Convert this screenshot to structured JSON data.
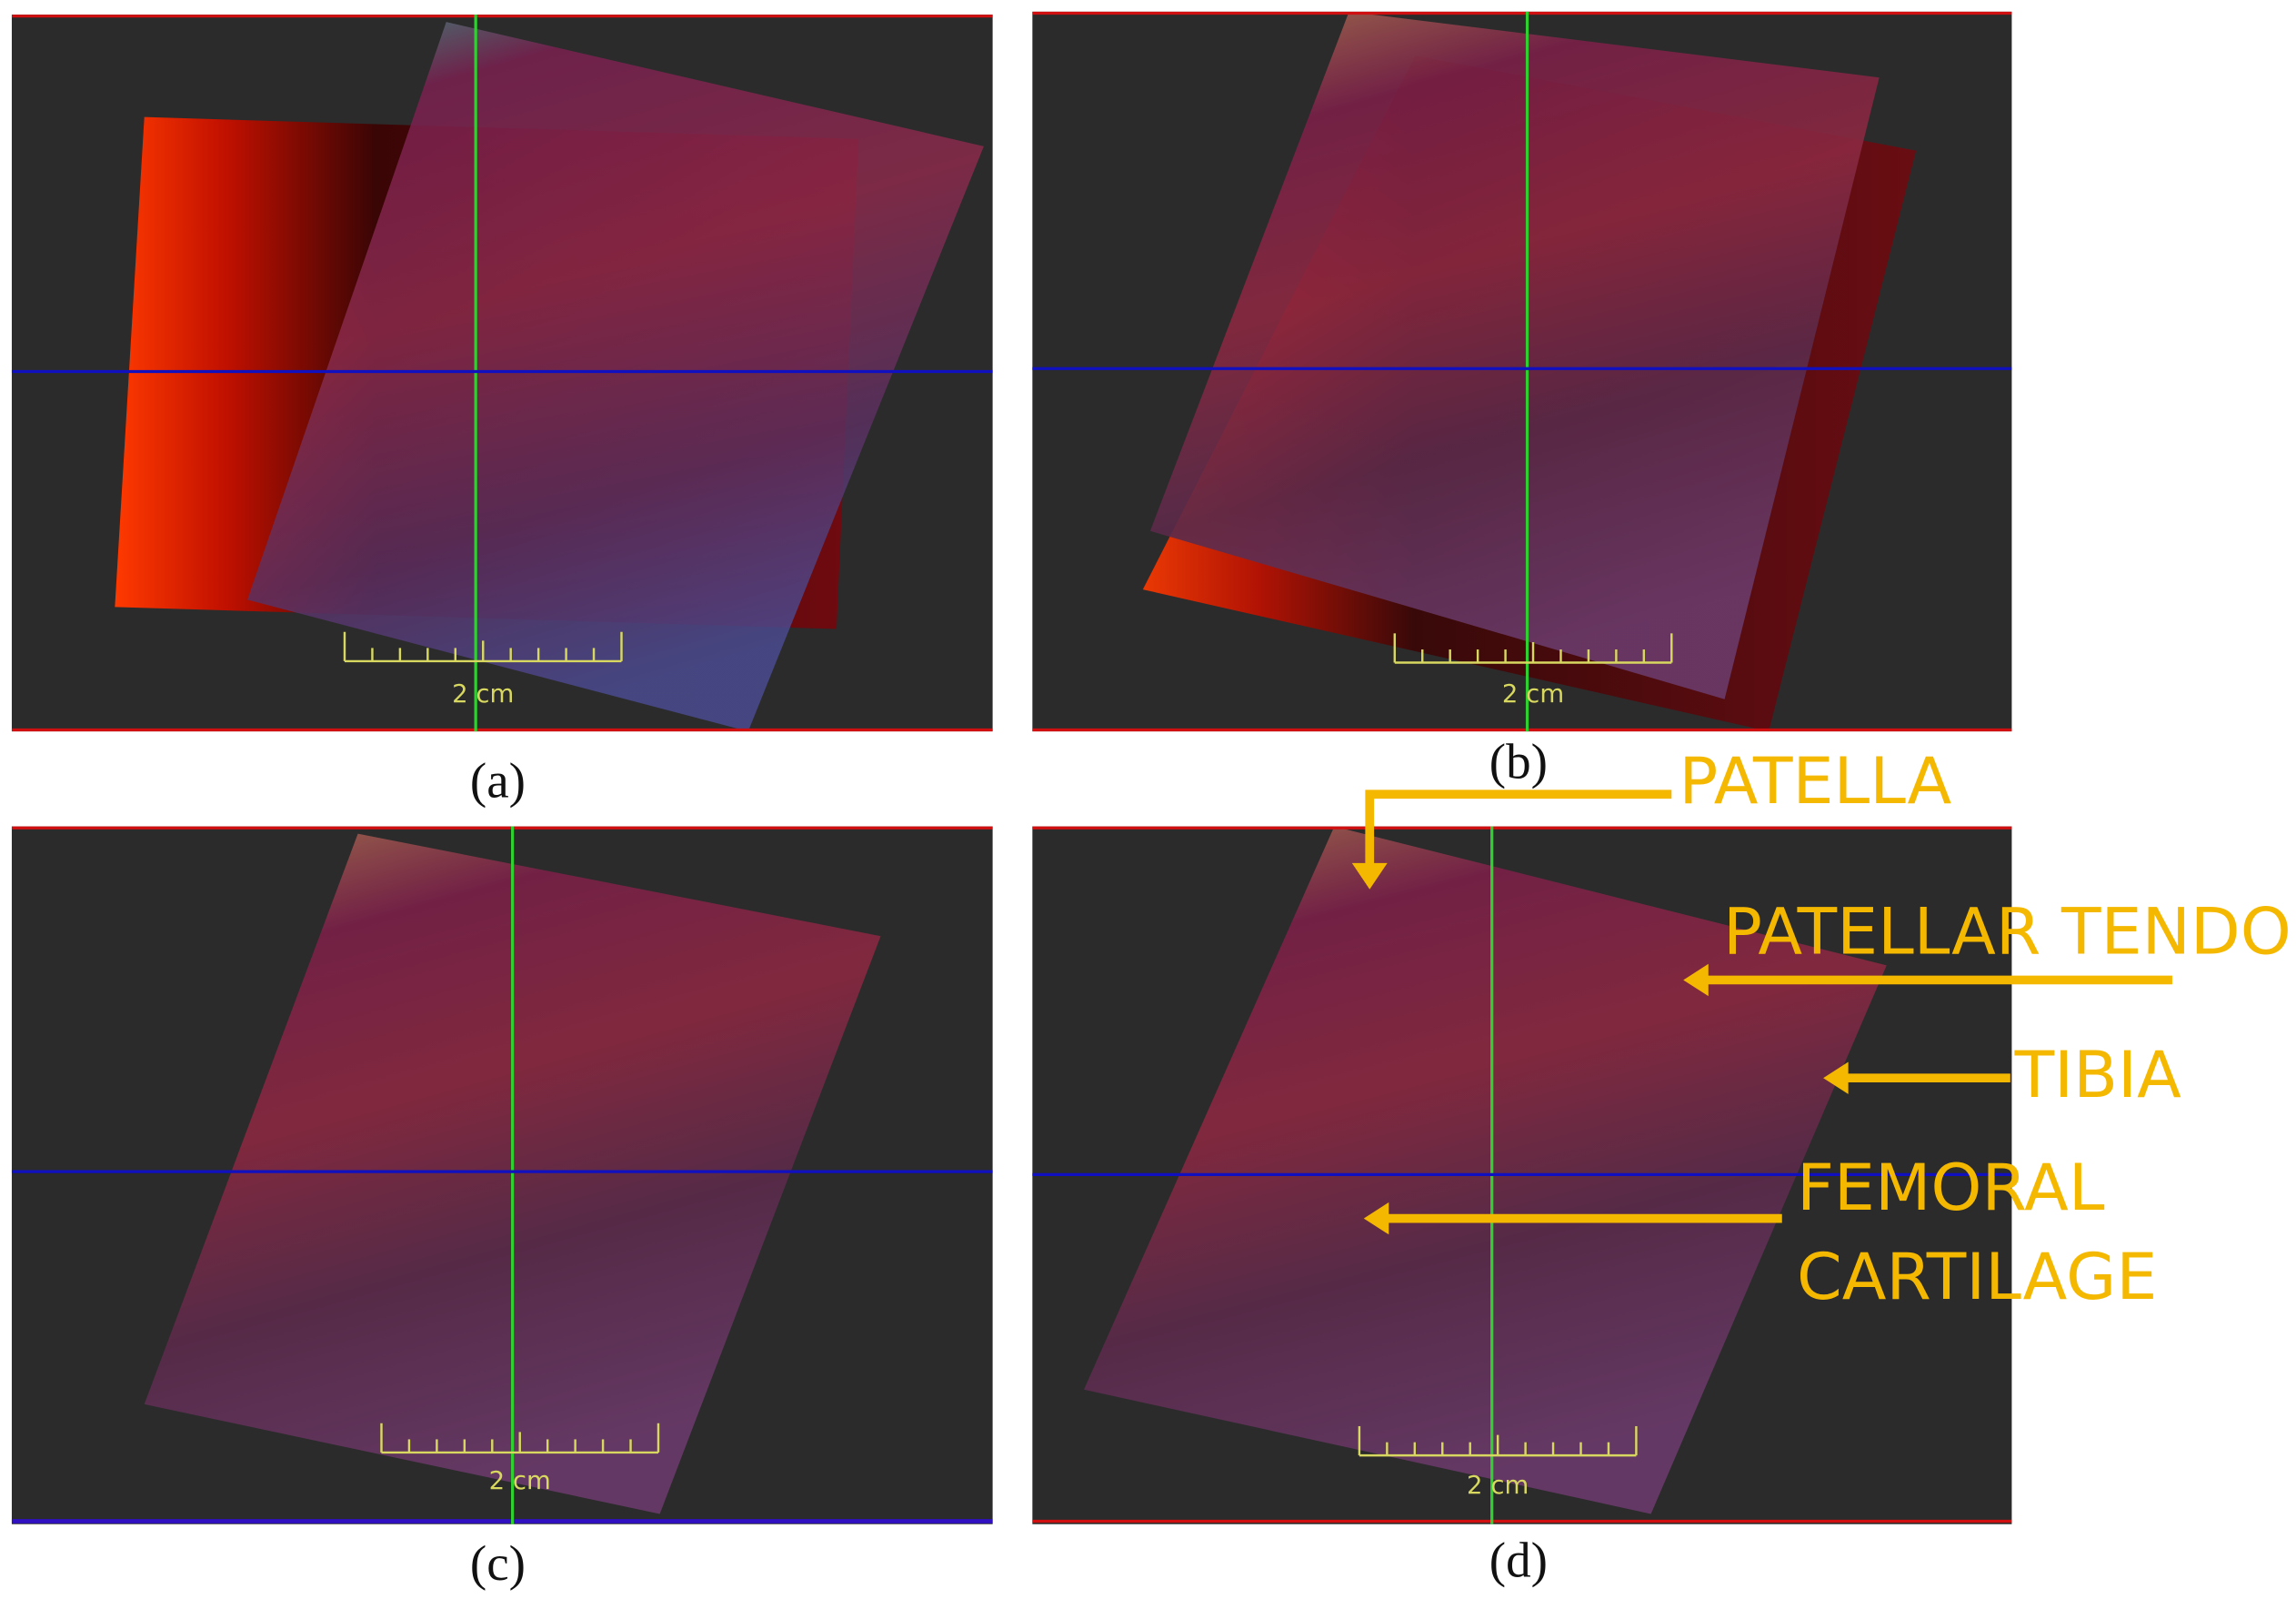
{
  "panels": [
    {
      "label": "(a)",
      "scale_label": "2 cm"
    },
    {
      "label": "(b)",
      "scale_label": "2 cm"
    },
    {
      "label": "(c)",
      "scale_label": "2 cm"
    },
    {
      "label": "(d)",
      "scale_label": "2 cm"
    }
  ],
  "annotations": {
    "patella": "PATELLA",
    "patellar_tendon": "PATELLAR TENDON",
    "tibia": "TIBIA",
    "femoral_cartilage": [
      "FEMORAL",
      "CARTILAGE"
    ]
  }
}
